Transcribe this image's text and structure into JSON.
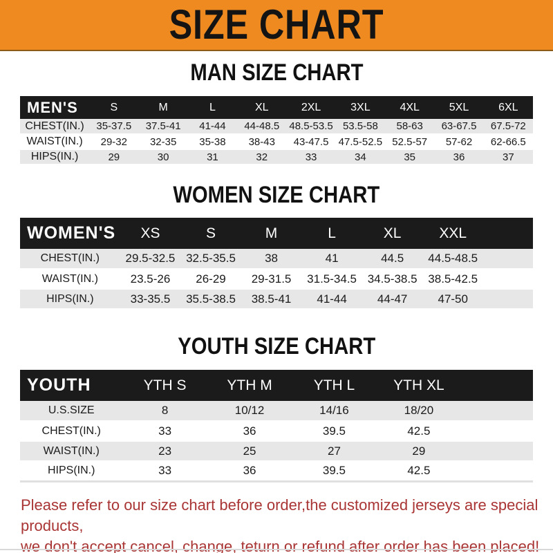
{
  "banner": {
    "title": "SIZE CHART"
  },
  "sections": [
    {
      "heading": "MAN SIZE CHART",
      "corner_label": "MEN'S",
      "columns": [
        "S",
        "M",
        "L",
        "XL",
        "2XL",
        "3XL",
        "4XL",
        "5XL",
        "6XL"
      ],
      "rows": [
        {
          "label": "CHEST(IN.)",
          "values": [
            "35-37.5",
            "37.5-41",
            "41-44",
            "44-48.5",
            "48.5-53.5",
            "53.5-58",
            "58-63",
            "63-67.5",
            "67.5-72"
          ]
        },
        {
          "label": "WAIST(IN.)",
          "values": [
            "29-32",
            "32-35",
            "35-38",
            "38-43",
            "43-47.5",
            "47.5-52.5",
            "52.5-57",
            "57-62",
            "62-66.5"
          ]
        },
        {
          "label": "HIPS(IN.)",
          "values": [
            "29",
            "30",
            "31",
            "32",
            "33",
            "34",
            "35",
            "36",
            "37"
          ]
        }
      ]
    },
    {
      "heading": "WOMEN SIZE CHART",
      "corner_label": "WOMEN'S",
      "columns": [
        "XS",
        "S",
        "M",
        "L",
        "XL",
        "XXL"
      ],
      "rows": [
        {
          "label": "CHEST(IN.)",
          "values": [
            "29.5-32.5",
            "32.5-35.5",
            "38",
            "41",
            "44.5",
            "44.5-48.5"
          ]
        },
        {
          "label": "WAIST(IN.)",
          "values": [
            "23.5-26",
            "26-29",
            "29-31.5",
            "31.5-34.5",
            "34.5-38.5",
            "38.5-42.5"
          ]
        },
        {
          "label": "HIPS(IN.)",
          "values": [
            "33-35.5",
            "35.5-38.5",
            "38.5-41",
            "41-44",
            "44-47",
            "47-50"
          ]
        }
      ]
    },
    {
      "heading": "YOUTH SIZE CHART",
      "corner_label": "YOUTH",
      "columns": [
        "YTH S",
        "YTH M",
        "YTH L",
        "YTH XL"
      ],
      "rows": [
        {
          "label": "U.S.SIZE",
          "values": [
            "8",
            "10/12",
            "14/16",
            "18/20"
          ]
        },
        {
          "label": "CHEST(IN.)",
          "values": [
            "33",
            "36",
            "39.5",
            "42.5"
          ]
        },
        {
          "label": "WAIST(IN.)",
          "values": [
            "23",
            "25",
            "27",
            "29"
          ]
        },
        {
          "label": "HIPS(IN.)",
          "values": [
            "33",
            "36",
            "39.5",
            "42.5"
          ]
        }
      ]
    }
  ],
  "footer": {
    "line1": "Please refer to our size chart before order,the customized jerseys are special products,",
    "line2": "we don't accept cancel, change, teturn or refund after order has been placed!"
  },
  "colors": {
    "banner_bg": "#EE8A1F",
    "band_bg": "#1B1B1B",
    "row_alt_bg": "#E7E7E7",
    "footer_text": "#A93434"
  }
}
